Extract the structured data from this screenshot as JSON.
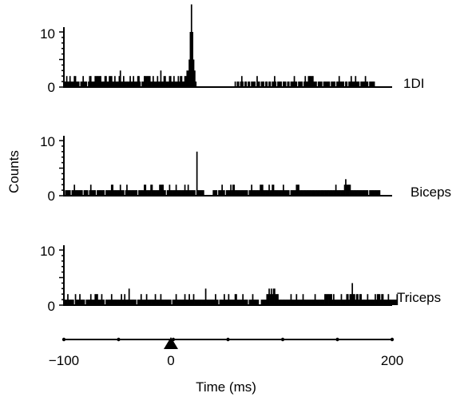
{
  "chart_data": {
    "type": "histogram",
    "ylabel": "Counts",
    "xlabel": "Time (ms)",
    "xlim": [
      -100,
      200
    ],
    "x_ticks": [
      "−100",
      "0",
      "200"
    ],
    "stimulus_marker_at": 0,
    "panels": [
      {
        "name": "1DI",
        "ytick_top": "10",
        "ytick_zero": "0",
        "ylim": [
          0,
          15
        ],
        "bin_ms": 1,
        "x_start": -100,
        "values": [
          1,
          1,
          2,
          1,
          1,
          2,
          1,
          1,
          1,
          2,
          2,
          1,
          1,
          1,
          0,
          1,
          1,
          2,
          1,
          1,
          1,
          0,
          1,
          2,
          2,
          1,
          1,
          1,
          2,
          2,
          2,
          2,
          2,
          2,
          1,
          1,
          1,
          2,
          2,
          1,
          1,
          2,
          2,
          2,
          1,
          1,
          2,
          1,
          1,
          1,
          2,
          3,
          1,
          1,
          2,
          1,
          1,
          1,
          1,
          1,
          2,
          1,
          1,
          2,
          1,
          1,
          1,
          2,
          2,
          1,
          0,
          1,
          1,
          2,
          2,
          2,
          2,
          2,
          2,
          1,
          1,
          2,
          1,
          1,
          1,
          2,
          1,
          1,
          3,
          1,
          1,
          2,
          2,
          1,
          1,
          1,
          2,
          2,
          1,
          1,
          2,
          1,
          1,
          1,
          2,
          1,
          2,
          2,
          1,
          1,
          2,
          2,
          3,
          3,
          5,
          10,
          15,
          10,
          5,
          3,
          1,
          0,
          0,
          0,
          0,
          0,
          0,
          0,
          0,
          0,
          0,
          0,
          0,
          0,
          0,
          0,
          0,
          0,
          0,
          0,
          0,
          0,
          0,
          0,
          0,
          0,
          0,
          0,
          0,
          0,
          0,
          0,
          0,
          0,
          0,
          0,
          1,
          0,
          1,
          1,
          0,
          1,
          2,
          1,
          0,
          1,
          1,
          0,
          1,
          1,
          0,
          1,
          1,
          1,
          1,
          0,
          2,
          1,
          1,
          0,
          1,
          1,
          1,
          0,
          1,
          1,
          0,
          1,
          1,
          0,
          1,
          1,
          2,
          1,
          0,
          1,
          1,
          1,
          1,
          0,
          1,
          1,
          1,
          0,
          1,
          1,
          0,
          1,
          1,
          1,
          2,
          1,
          1,
          0,
          1,
          1,
          1,
          1,
          0,
          1,
          2,
          1,
          1,
          2,
          2,
          2,
          2,
          2,
          1,
          1,
          1,
          0,
          1,
          1,
          1,
          1,
          0,
          1,
          1,
          1,
          1,
          1,
          1,
          0,
          1,
          1,
          1,
          1,
          0,
          1,
          1,
          2,
          1,
          1,
          1,
          1,
          0,
          1,
          1,
          0,
          1,
          1,
          2,
          1,
          1,
          1,
          2,
          1,
          1,
          1,
          0,
          1,
          1,
          1,
          1,
          2,
          1,
          1,
          0,
          1,
          1,
          1,
          1,
          1
        ]
      },
      {
        "name": "Biceps",
        "ytick_top": "10",
        "ytick_zero": "0",
        "ylim": [
          0,
          10
        ],
        "bin_ms": 1,
        "x_start": -100,
        "values": [
          0,
          1,
          1,
          1,
          1,
          1,
          0,
          1,
          1,
          2,
          1,
          1,
          1,
          1,
          1,
          1,
          1,
          0,
          1,
          1,
          1,
          1,
          0,
          1,
          2,
          1,
          1,
          1,
          1,
          0,
          1,
          1,
          1,
          1,
          1,
          1,
          1,
          0,
          1,
          1,
          1,
          1,
          1,
          2,
          2,
          1,
          1,
          1,
          1,
          1,
          1,
          2,
          1,
          1,
          1,
          0,
          1,
          2,
          1,
          1,
          1,
          1,
          1,
          1,
          1,
          1,
          1,
          0,
          1,
          1,
          1,
          1,
          1,
          2,
          2,
          1,
          1,
          1,
          1,
          2,
          2,
          1,
          1,
          1,
          1,
          1,
          1,
          2,
          2,
          2,
          2,
          1,
          1,
          0,
          1,
          1,
          2,
          1,
          1,
          1,
          1,
          1,
          2,
          1,
          1,
          1,
          1,
          1,
          1,
          1,
          2,
          1,
          1,
          2,
          1,
          1,
          1,
          1,
          1,
          1,
          0,
          8,
          1,
          1,
          1,
          1,
          1,
          1,
          0,
          0,
          0,
          0,
          0,
          0,
          0,
          0,
          1,
          1,
          1,
          1,
          0,
          1,
          1,
          1,
          2,
          1,
          1,
          0,
          1,
          1,
          1,
          1,
          2,
          1,
          2,
          2,
          1,
          1,
          1,
          1,
          1,
          1,
          1,
          1,
          1,
          1,
          1,
          1,
          0,
          1,
          1,
          2,
          1,
          1,
          1,
          1,
          1,
          1,
          1,
          2,
          2,
          2,
          1,
          1,
          1,
          1,
          1,
          2,
          1,
          1,
          2,
          2,
          1,
          1,
          1,
          1,
          1,
          1,
          1,
          1,
          2,
          1,
          1,
          1,
          1,
          1,
          0,
          1,
          1,
          1,
          1,
          1,
          2,
          2,
          2,
          1,
          1,
          1,
          1,
          1,
          1,
          1,
          1,
          1,
          1,
          1,
          1,
          1,
          1,
          1,
          1,
          1,
          1,
          1,
          1,
          1,
          1,
          1,
          1,
          1,
          1,
          1,
          1,
          1,
          1,
          1,
          1,
          1,
          2,
          1,
          1,
          1,
          1,
          1,
          1,
          1,
          2,
          3,
          2,
          2,
          2,
          2,
          1,
          1,
          1,
          1,
          1,
          1,
          1,
          1,
          1,
          1,
          1,
          1,
          1,
          1,
          1,
          1,
          0,
          1,
          1,
          1,
          1,
          1,
          1,
          1,
          1,
          1,
          1
        ]
      },
      {
        "name": "Triceps",
        "ytick_top": "10",
        "ytick_zero": "0",
        "ylim": [
          0,
          10
        ],
        "bin_ms": 1,
        "x_start": -100,
        "values": [
          1,
          1,
          1,
          2,
          1,
          1,
          1,
          1,
          1,
          0,
          2,
          1,
          1,
          1,
          2,
          1,
          1,
          1,
          1,
          0,
          1,
          1,
          1,
          1,
          2,
          1,
          1,
          1,
          2,
          2,
          2,
          1,
          1,
          1,
          2,
          1,
          1,
          0,
          1,
          1,
          1,
          1,
          1,
          2,
          1,
          1,
          1,
          1,
          1,
          1,
          1,
          1,
          2,
          1,
          1,
          2,
          1,
          1,
          1,
          3,
          1,
          1,
          1,
          1,
          1,
          1,
          0,
          1,
          1,
          1,
          2,
          1,
          1,
          1,
          1,
          2,
          1,
          1,
          1,
          1,
          1,
          1,
          1,
          2,
          1,
          1,
          1,
          1,
          2,
          1,
          1,
          1,
          1,
          1,
          1,
          1,
          1,
          1,
          0,
          1,
          1,
          1,
          2,
          1,
          1,
          1,
          1,
          1,
          1,
          1,
          2,
          1,
          1,
          1,
          2,
          1,
          1,
          1,
          2,
          1,
          1,
          1,
          1,
          1,
          1,
          1,
          1,
          1,
          1,
          3,
          1,
          1,
          1,
          1,
          1,
          1,
          1,
          1,
          2,
          1,
          1,
          0,
          1,
          1,
          1,
          1,
          2,
          1,
          1,
          1,
          2,
          1,
          1,
          1,
          1,
          1,
          2,
          2,
          1,
          1,
          1,
          1,
          1,
          2,
          1,
          1,
          1,
          1,
          0,
          1,
          1,
          1,
          2,
          1,
          1,
          1,
          1,
          1,
          0,
          0,
          1,
          1,
          1,
          1,
          1,
          2,
          2,
          3,
          2,
          3,
          2,
          3,
          3,
          2,
          2,
          2,
          1,
          1,
          1,
          1,
          1,
          1,
          1,
          1,
          1,
          1,
          1,
          2,
          1,
          1,
          1,
          1,
          2,
          1,
          1,
          1,
          1,
          1,
          2,
          1,
          1,
          1,
          1,
          1,
          1,
          1,
          1,
          1,
          1,
          2,
          1,
          1,
          1,
          1,
          1,
          1,
          1,
          1,
          2,
          2,
          2,
          2,
          2,
          2,
          2,
          1,
          2,
          1,
          1,
          1,
          1,
          1,
          1,
          2,
          1,
          1,
          1,
          1,
          2,
          2,
          1,
          2,
          2,
          4,
          2,
          2,
          1,
          2,
          2,
          1,
          2,
          2,
          1,
          1,
          1,
          1,
          1,
          2,
          1,
          1,
          1,
          1,
          1,
          1,
          2,
          1,
          2,
          2,
          2,
          1,
          2,
          2,
          1,
          1,
          1,
          1,
          2,
          1,
          1,
          1,
          1,
          1,
          1,
          1,
          2
        ]
      }
    ]
  }
}
